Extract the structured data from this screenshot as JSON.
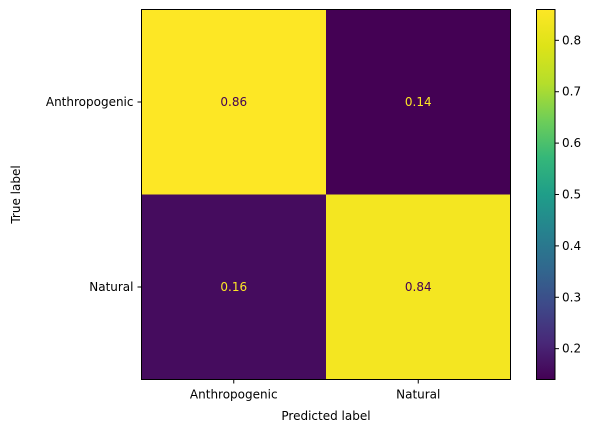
{
  "chart_data": {
    "type": "heatmap",
    "title": "",
    "xlabel": "Predicted label",
    "ylabel": "True label",
    "x_categories": [
      "Anthropogenic",
      "Natural"
    ],
    "y_categories": [
      "Anthropogenic",
      "Natural"
    ],
    "values": [
      [
        0.86,
        0.14
      ],
      [
        0.16,
        0.84
      ]
    ],
    "value_labels": [
      [
        "0.86",
        "0.14"
      ],
      [
        "0.16",
        "0.84"
      ]
    ],
    "colormap": "viridis",
    "colorbar": {
      "range": [
        0.14,
        0.86
      ],
      "ticks": [
        0.2,
        0.3,
        0.4,
        0.5,
        0.6,
        0.7,
        0.8
      ],
      "tick_labels": [
        "0.2",
        "0.3",
        "0.4",
        "0.5",
        "0.6",
        "0.7",
        "0.8"
      ]
    },
    "grid": false,
    "text_colors": {
      "dark_cell": "#fde725",
      "light_cell": "#440154"
    }
  }
}
